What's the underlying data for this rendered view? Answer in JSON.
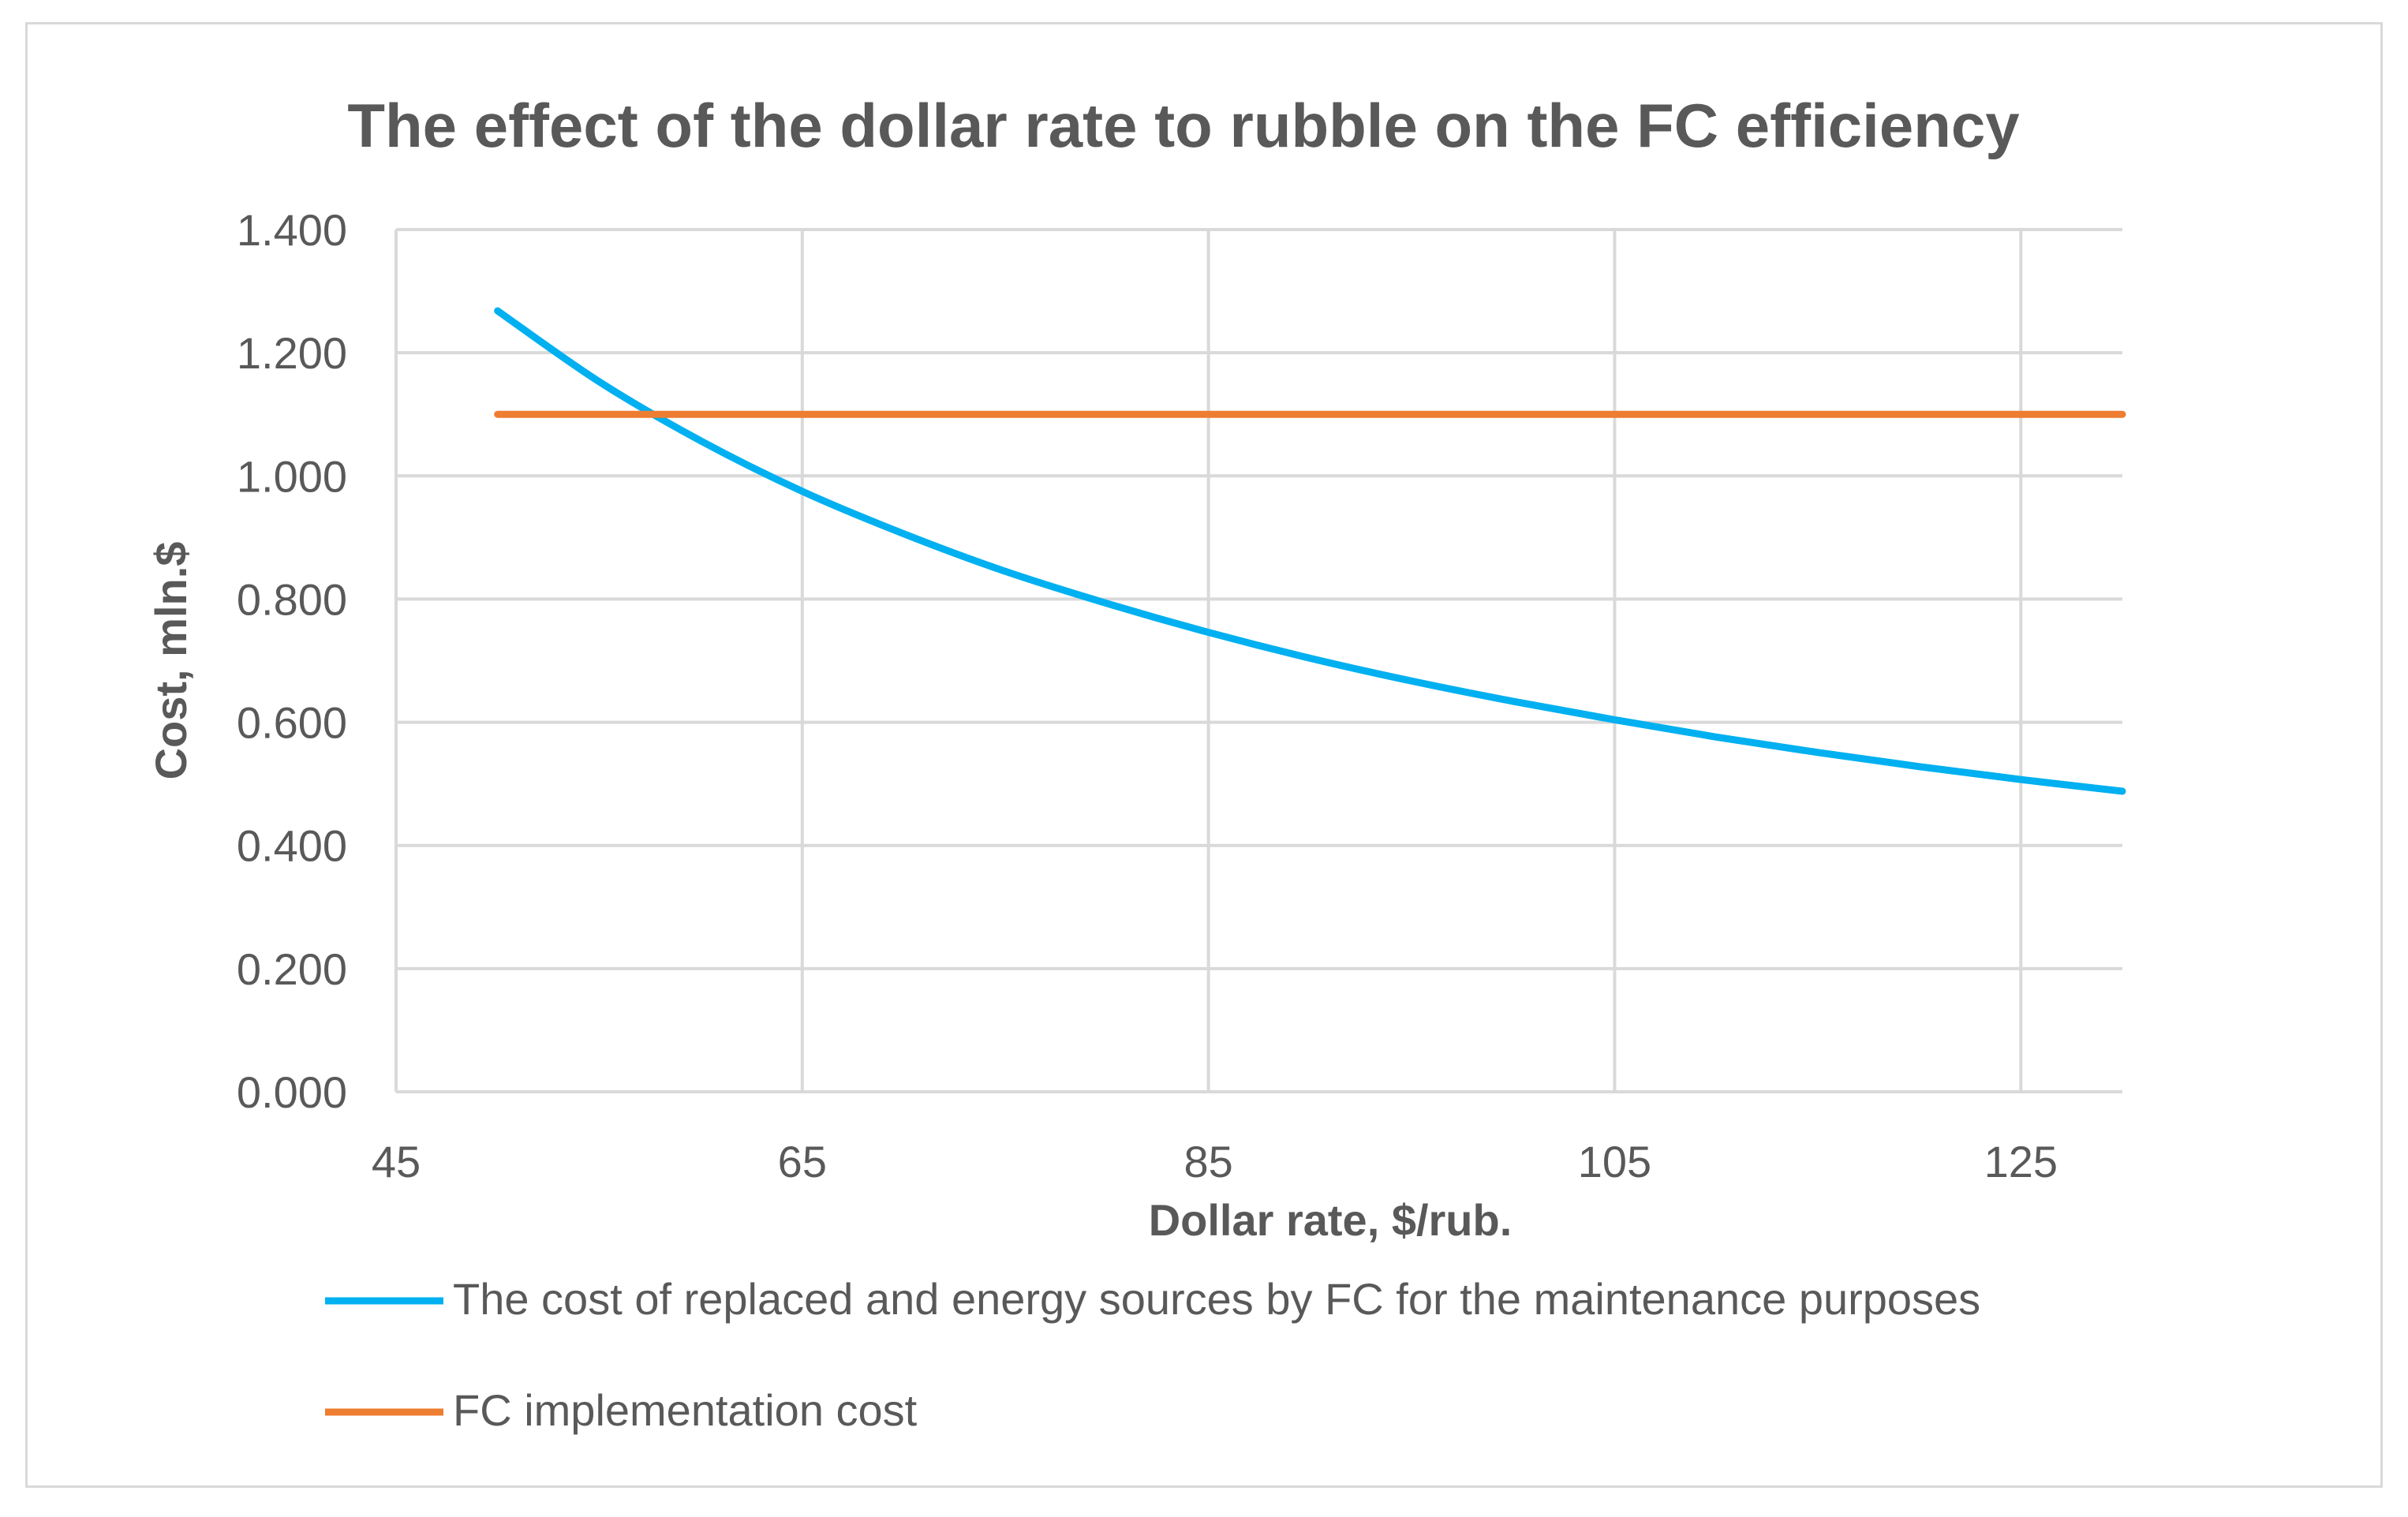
{
  "chart_data": {
    "type": "line",
    "title": "The effect of the dollar rate to rubble on the FC efficiency",
    "xlabel": "Dollar rate, $/rub.",
    "ylabel": "Cost, mln.$",
    "xlim": [
      45,
      130
    ],
    "ylim": [
      0,
      1.4
    ],
    "x_ticks": [
      "45",
      "65",
      "85",
      "105",
      "125"
    ],
    "x_tick_values": [
      45,
      65,
      85,
      105,
      125
    ],
    "y_ticks": [
      "0.000",
      "0.200",
      "0.400",
      "0.600",
      "0.800",
      "1.000",
      "1.200",
      "1.400"
    ],
    "y_tick_values": [
      0,
      0.2,
      0.4,
      0.6,
      0.8,
      1.0,
      1.2,
      1.4
    ],
    "grid": true,
    "legend_position": "bottom",
    "series": [
      {
        "name": "The cost of replaced and energy sources by FC for the maintenance purposes",
        "color": "#00b0f0",
        "x": [
          50,
          55,
          60,
          65,
          70,
          75,
          80,
          85,
          90,
          95,
          100,
          105,
          110,
          115,
          120,
          125,
          130
        ],
        "values": [
          1.268,
          1.153,
          1.057,
          0.975,
          0.906,
          0.845,
          0.793,
          0.746,
          0.704,
          0.667,
          0.634,
          0.604,
          0.576,
          0.551,
          0.528,
          0.507,
          0.488
        ]
      },
      {
        "name": "FC implementation cost",
        "color": "#ed7d31",
        "x": [
          50,
          130
        ],
        "values": [
          1.1,
          1.1
        ]
      }
    ]
  }
}
